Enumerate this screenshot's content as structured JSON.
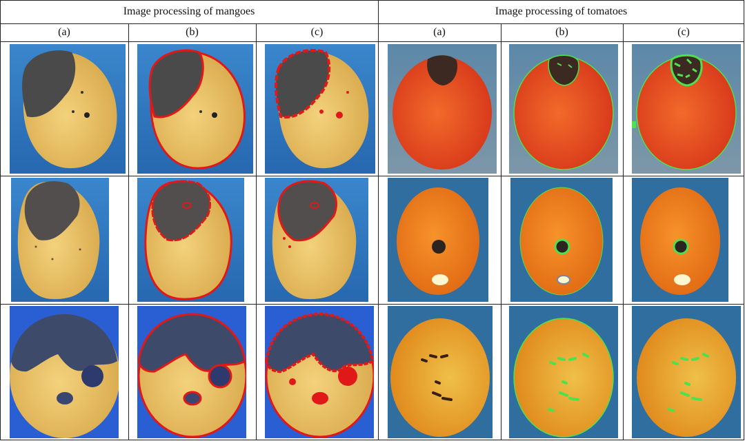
{
  "header": {
    "mangoes": "Image processing of mangoes",
    "tomatoes": "Image processing of tomatoes"
  },
  "subheaders": [
    "(a)",
    "(b)",
    "(c)",
    "(a)",
    "(b)",
    "(c)"
  ],
  "colors": {
    "background_blue": "#2f7bc3",
    "mango_yellow": "#e8c062",
    "mango_dark": "#4b4a4a",
    "tomato_red": "#e8401f",
    "tomato_orange": "#f07a1a",
    "outline_red": "#e01818",
    "outline_green": "#4ee04e"
  },
  "icons": [
    "mango-photo",
    "tomato-photo"
  ]
}
